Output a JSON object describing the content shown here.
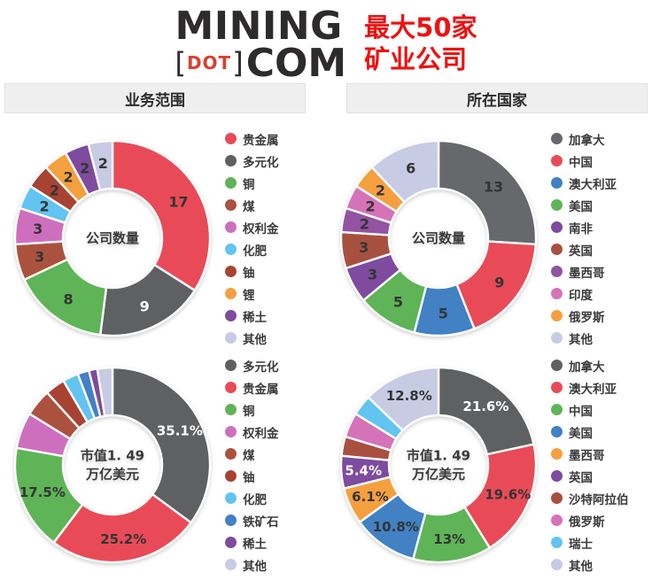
{
  "header": {
    "logo": {
      "mining": "MINING",
      "bracket_left": "[",
      "dot": "DOT",
      "bracket_right": "]",
      "com": "COM"
    },
    "subtitle_line1": "最大50家",
    "subtitle_line2": "矿业公司",
    "subtitle_color": "#ee1111"
  },
  "sections": [
    {
      "title": "业务范围"
    },
    {
      "title": "所在国家"
    }
  ],
  "label_colors": {
    "dark": "#343434",
    "white": "#ffffff"
  },
  "chart_data": [
    {
      "type": "pie",
      "section": "业务范围",
      "center_label": [
        "公司数量"
      ],
      "legend_position": "right",
      "label_font_size": 16,
      "slices": [
        {
          "label": "贵金属",
          "value": 17,
          "display": "17",
          "color": "#e84b57",
          "text": "dark"
        },
        {
          "label": "多元化",
          "value": 9,
          "display": "9",
          "color": "#5f6062",
          "text": "white"
        },
        {
          "label": "铜",
          "value": 8,
          "display": "8",
          "color": "#5fb457",
          "text": "dark"
        },
        {
          "label": "煤",
          "value": 3,
          "display": "3",
          "color": "#ab523f",
          "text": "dark"
        },
        {
          "label": "权利金",
          "value": 3,
          "display": "3",
          "color": "#ce6fbe",
          "text": "dark"
        },
        {
          "label": "化肥",
          "value": 2,
          "display": "2",
          "color": "#62c4f0",
          "text": "dark"
        },
        {
          "label": "铀",
          "value": 2,
          "display": "2",
          "color": "#a84334",
          "text": "dark"
        },
        {
          "label": "锂",
          "value": 2,
          "display": "2",
          "color": "#f5a03f",
          "text": "dark"
        },
        {
          "label": "稀土",
          "value": 2,
          "display": "2",
          "color": "#7e4b9e",
          "text": "dark"
        },
        {
          "label": "其他",
          "value": 2,
          "display": "2",
          "color": "#c7cbe3",
          "text": "dark"
        }
      ]
    },
    {
      "type": "pie",
      "section": "所在国家",
      "center_label": [
        "公司数量"
      ],
      "legend_position": "right",
      "label_font_size": 16,
      "slices": [
        {
          "label": "加拿大",
          "value": 13,
          "display": "13",
          "color": "#66686b",
          "text": "dark"
        },
        {
          "label": "中国",
          "value": 9,
          "display": "9",
          "color": "#e84b57",
          "text": "dark"
        },
        {
          "label": "澳大利亚",
          "value": 5,
          "display": "5",
          "color": "#4181c4",
          "text": "dark"
        },
        {
          "label": "美国",
          "value": 5,
          "display": "5",
          "color": "#5fb457",
          "text": "dark"
        },
        {
          "label": "南非",
          "value": 3,
          "display": "3",
          "color": "#7e4b9e",
          "text": "dark"
        },
        {
          "label": "英国",
          "value": 3,
          "display": "3",
          "color": "#a8503f",
          "text": "dark"
        },
        {
          "label": "墨西哥",
          "value": 2,
          "display": "2",
          "color": "#9253a1",
          "text": "dark"
        },
        {
          "label": "印度",
          "value": 2,
          "display": "2",
          "color": "#d672b8",
          "text": "dark"
        },
        {
          "label": "俄罗斯",
          "value": 2,
          "display": "2",
          "color": "#f5a03f",
          "text": "dark"
        },
        {
          "label": "其他",
          "value": 6,
          "display": "6",
          "color": "#c7cbe3",
          "text": "dark"
        }
      ]
    },
    {
      "type": "pie",
      "section": "业务范围",
      "center_label": [
        "市值1. 49",
        "万亿美元"
      ],
      "legend_position": "right",
      "label_font_size": 15,
      "slices": [
        {
          "label": "多元化",
          "value": 35.1,
          "display": "35.1%",
          "color": "#5f6062",
          "text": "white"
        },
        {
          "label": "贵金属",
          "value": 25.2,
          "display": "25.2%",
          "color": "#e84b57",
          "text": "dark"
        },
        {
          "label": "铜",
          "value": 17.5,
          "display": "17.5%",
          "color": "#5fb457",
          "text": "dark"
        },
        {
          "label": "权利金",
          "value": 6.0,
          "display": "",
          "color": "#ce6fbe",
          "text": "dark"
        },
        {
          "label": "煤",
          "value": 4.5,
          "display": "",
          "color": "#ab523f",
          "text": "dark"
        },
        {
          "label": "铀",
          "value": 3.3,
          "display": "",
          "color": "#a84334",
          "text": "dark"
        },
        {
          "label": "化肥",
          "value": 2.6,
          "display": "",
          "color": "#62c4f0",
          "text": "dark"
        },
        {
          "label": "铁矿石",
          "value": 1.9,
          "display": "",
          "color": "#4181c4",
          "text": "dark"
        },
        {
          "label": "稀土",
          "value": 1.4,
          "display": "",
          "color": "#7e4b9e",
          "text": "dark"
        },
        {
          "label": "其他",
          "value": 2.5,
          "display": "",
          "color": "#c7cbe3",
          "text": "dark"
        }
      ]
    },
    {
      "type": "pie",
      "section": "所在国家",
      "center_label": [
        "市值1. 49",
        "万亿美元"
      ],
      "legend_position": "right",
      "label_font_size": 15,
      "slices": [
        {
          "label": "加拿大",
          "value": 21.6,
          "display": "21.6%",
          "color": "#5f6062",
          "text": "white"
        },
        {
          "label": "澳大利亚",
          "value": 19.6,
          "display": "19.6%",
          "color": "#e84b57",
          "text": "dark"
        },
        {
          "label": "中国",
          "value": 13.0,
          "display": "13%",
          "color": "#5fb457",
          "text": "dark"
        },
        {
          "label": "美国",
          "value": 10.8,
          "display": "10.8%",
          "color": "#4181c4",
          "text": "dark"
        },
        {
          "label": "墨西哥",
          "value": 6.1,
          "display": "6.1%",
          "color": "#f5a03f",
          "text": "dark"
        },
        {
          "label": "英国",
          "value": 5.4,
          "display": "5.4%",
          "color": "#7e4b9e",
          "text": "white"
        },
        {
          "label": "沙特阿拉伯",
          "value": 3.2,
          "display": "",
          "color": "#a8503f",
          "text": "dark"
        },
        {
          "label": "俄罗斯",
          "value": 4.1,
          "display": "",
          "color": "#d672b8",
          "text": "dark"
        },
        {
          "label": "瑞士",
          "value": 3.4,
          "display": "",
          "color": "#62c4f0",
          "text": "dark"
        },
        {
          "label": "其他",
          "value": 12.8,
          "display": "12.8%",
          "color": "#c7cbe3",
          "text": "dark"
        }
      ]
    }
  ]
}
